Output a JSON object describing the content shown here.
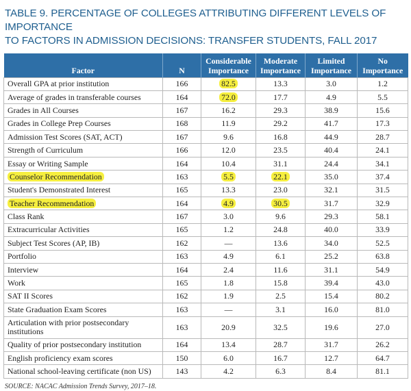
{
  "title_line1": "TABLE 9. PERCENTAGE OF COLLEGES ATTRIBUTING DIFFERENT LEVELS OF IMPORTANCE",
  "title_line2": "TO FACTORS IN ADMISSION DECISIONS: TRANSFER STUDENTS, FALL 2017",
  "headers": [
    "Factor",
    "N",
    "Considerable Importance",
    "Moderate Importance",
    "Limited Importance",
    "No Importance"
  ],
  "rows": [
    {
      "factor": "Overall GPA at prior institution",
      "n": "166",
      "considerable": "82.5",
      "moderate": "13.3",
      "limited": "3.0",
      "none": "1.2"
    },
    {
      "factor": "Average of grades in transferable courses",
      "n": "164",
      "considerable": "72.0",
      "moderate": "17.7",
      "limited": "4.9",
      "none": "5.5"
    },
    {
      "factor": "Grades in All Courses",
      "n": "167",
      "considerable": "16.2",
      "moderate": "29.3",
      "limited": "38.9",
      "none": "15.6"
    },
    {
      "factor": "Grades in College Prep Courses",
      "n": "168",
      "considerable": "11.9",
      "moderate": "29.2",
      "limited": "41.7",
      "none": "17.3"
    },
    {
      "factor": "Admission Test Scores (SAT, ACT)",
      "n": "167",
      "considerable": "9.6",
      "moderate": "16.8",
      "limited": "44.9",
      "none": "28.7"
    },
    {
      "factor": "Strength of Curriculum",
      "n": "166",
      "considerable": "12.0",
      "moderate": "23.5",
      "limited": "40.4",
      "none": "24.1"
    },
    {
      "factor": "Essay or Writing Sample",
      "n": "164",
      "considerable": "10.4",
      "moderate": "31.1",
      "limited": "24.4",
      "none": "34.1"
    },
    {
      "factor": "Counselor Recommendation",
      "n": "163",
      "considerable": "5.5",
      "moderate": "22.1",
      "limited": "35.0",
      "none": "37.4"
    },
    {
      "factor": "Student's Demonstrated Interest",
      "n": "165",
      "considerable": "13.3",
      "moderate": "23.0",
      "limited": "32.1",
      "none": "31.5"
    },
    {
      "factor": "Teacher Recommendation",
      "n": "164",
      "considerable": "4.9",
      "moderate": "30.5",
      "limited": "31.7",
      "none": "32.9"
    },
    {
      "factor": "Class Rank",
      "n": "167",
      "considerable": "3.0",
      "moderate": "9.6",
      "limited": "29.3",
      "none": "58.1"
    },
    {
      "factor": "Extracurricular Activities",
      "n": "165",
      "considerable": "1.2",
      "moderate": "24.8",
      "limited": "40.0",
      "none": "33.9"
    },
    {
      "factor": "Subject Test Scores (AP, IB)",
      "n": "162",
      "considerable": "—",
      "moderate": "13.6",
      "limited": "34.0",
      "none": "52.5"
    },
    {
      "factor": "Portfolio",
      "n": "163",
      "considerable": "4.9",
      "moderate": "6.1",
      "limited": "25.2",
      "none": "63.8"
    },
    {
      "factor": "Interview",
      "n": "164",
      "considerable": "2.4",
      "moderate": "11.6",
      "limited": "31.1",
      "none": "54.9"
    },
    {
      "factor": "Work",
      "n": "165",
      "considerable": "1.8",
      "moderate": "15.8",
      "limited": "39.4",
      "none": "43.0"
    },
    {
      "factor": "SAT II Scores",
      "n": "162",
      "considerable": "1.9",
      "moderate": "2.5",
      "limited": "15.4",
      "none": "80.2"
    },
    {
      "factor": "State Graduation Exam Scores",
      "n": "163",
      "considerable": "—",
      "moderate": "3.1",
      "limited": "16.0",
      "none": "81.0"
    },
    {
      "factor": "Articulation with prior postsecondary institutions",
      "n": "163",
      "considerable": "20.9",
      "moderate": "32.5",
      "limited": "19.6",
      "none": "27.0"
    },
    {
      "factor": "Quality of prior postsecondary institution",
      "n": "164",
      "considerable": "13.4",
      "moderate": "28.7",
      "limited": "31.7",
      "none": "26.2"
    },
    {
      "factor": "English proficiency exam scores",
      "n": "150",
      "considerable": "6.0",
      "moderate": "16.7",
      "limited": "12.7",
      "none": "64.7"
    },
    {
      "factor": "National school-leaving certificate (non US)",
      "n": "143",
      "considerable": "4.2",
      "moderate": "6.3",
      "limited": "8.4",
      "none": "81.1"
    }
  ],
  "highlight_color": "#f6ef3f",
  "header_color": "#2e6fa7",
  "source": "SOURCE: NACAC Admission Trends Survey, 2017–18."
}
